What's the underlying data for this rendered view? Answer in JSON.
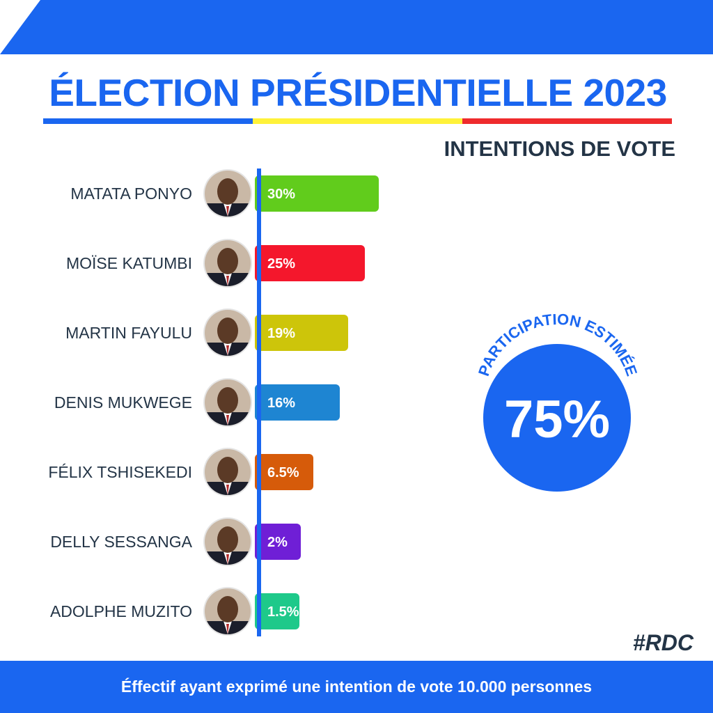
{
  "header": {
    "title": "ÉLECTION PRÉSIDENTIELLE 2023",
    "subtitle": "INTENTIONS DE VOTE",
    "flag_colors": [
      "#1a66f0",
      "#fff23a",
      "#ef2b2d"
    ],
    "accent_color": "#1a66f0"
  },
  "chart_data": {
    "type": "bar",
    "orientation": "horizontal",
    "title": "INTENTIONS DE VOTE",
    "categories": [
      "MATATA PONYO",
      "MOÏSE KATUMBI",
      "MARTIN FAYULU",
      "DENIS MUKWEGE",
      "FÉLIX TSHISEKEDI",
      "DELLY SESSANGA",
      "ADOLPHE MUZITO"
    ],
    "values": [
      30,
      25,
      19,
      16,
      6.5,
      2,
      1.5
    ],
    "data_labels": [
      "30%",
      "25%",
      "19%",
      "16%",
      "6.5%",
      "2%",
      "1.5%"
    ],
    "bar_colors": [
      "#61cc1c",
      "#f4172c",
      "#cdc50a",
      "#1e85d2",
      "#d65b0a",
      "#6f1fd6",
      "#1ec98a"
    ],
    "candidate_photos": [
      "avatar-icon",
      "avatar-icon",
      "avatar-icon",
      "avatar-icon",
      "avatar-icon",
      "avatar-icon",
      "avatar-icon"
    ],
    "xlim": [
      0,
      30
    ],
    "grid": false,
    "legend": "none"
  },
  "participation": {
    "label": "PARTICIPATION ESTIMÉE",
    "value": "75%",
    "color": "#1a66f0"
  },
  "hashtag": "#RDC",
  "footer": {
    "text": "Éffectif ayant exprimé une intention de vote 10.000 personnes"
  }
}
